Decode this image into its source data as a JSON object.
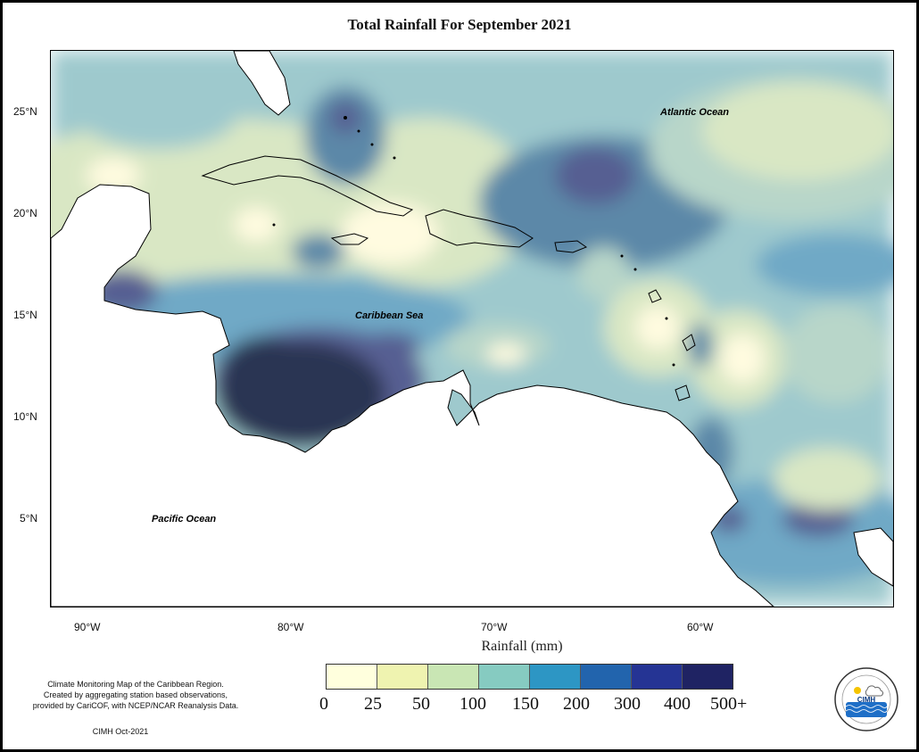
{
  "title": "Total Rainfall For September 2021",
  "axis_title": "Rainfall (mm)",
  "lat_labels": [
    "25°N",
    "20°N",
    "15°N",
    "10°N",
    "5°N"
  ],
  "lon_labels": [
    "90°W",
    "80°W",
    "70°W",
    "60°W"
  ],
  "ocean_labels": {
    "atlantic": "Atlantic Ocean",
    "caribbean": "Caribbean Sea",
    "pacific": "Pacific Ocean"
  },
  "legend": {
    "colors": [
      "#ffffdd",
      "#eff3b0",
      "#c9e6b4",
      "#86cbc1",
      "#2d96c4",
      "#2264ad",
      "#253494",
      "#1f2363",
      "#0c1d4f"
    ],
    "labels": [
      "0",
      "25",
      "50",
      "100",
      "150",
      "200",
      "300",
      "400",
      "500+"
    ]
  },
  "note": {
    "line1": "Climate Monitoring Map of the Caribbean Region.",
    "line2": "Created by aggregating station based observations,",
    "line3": "provided by CariCOF, with NCEP/NCAR Reanalysis Data.",
    "credit": "CIMH Oct-2021"
  },
  "logo": {
    "text": "CIMH"
  },
  "field_colors": {
    "c25": "#d9e7c4",
    "c50": "#b8d6c9",
    "c100": "#9ec9cd",
    "c150": "#6fa9c6",
    "c200": "#5b88a8",
    "c300": "#565f92",
    "c500": "#2b3552",
    "c0": "#fffbe0"
  }
}
